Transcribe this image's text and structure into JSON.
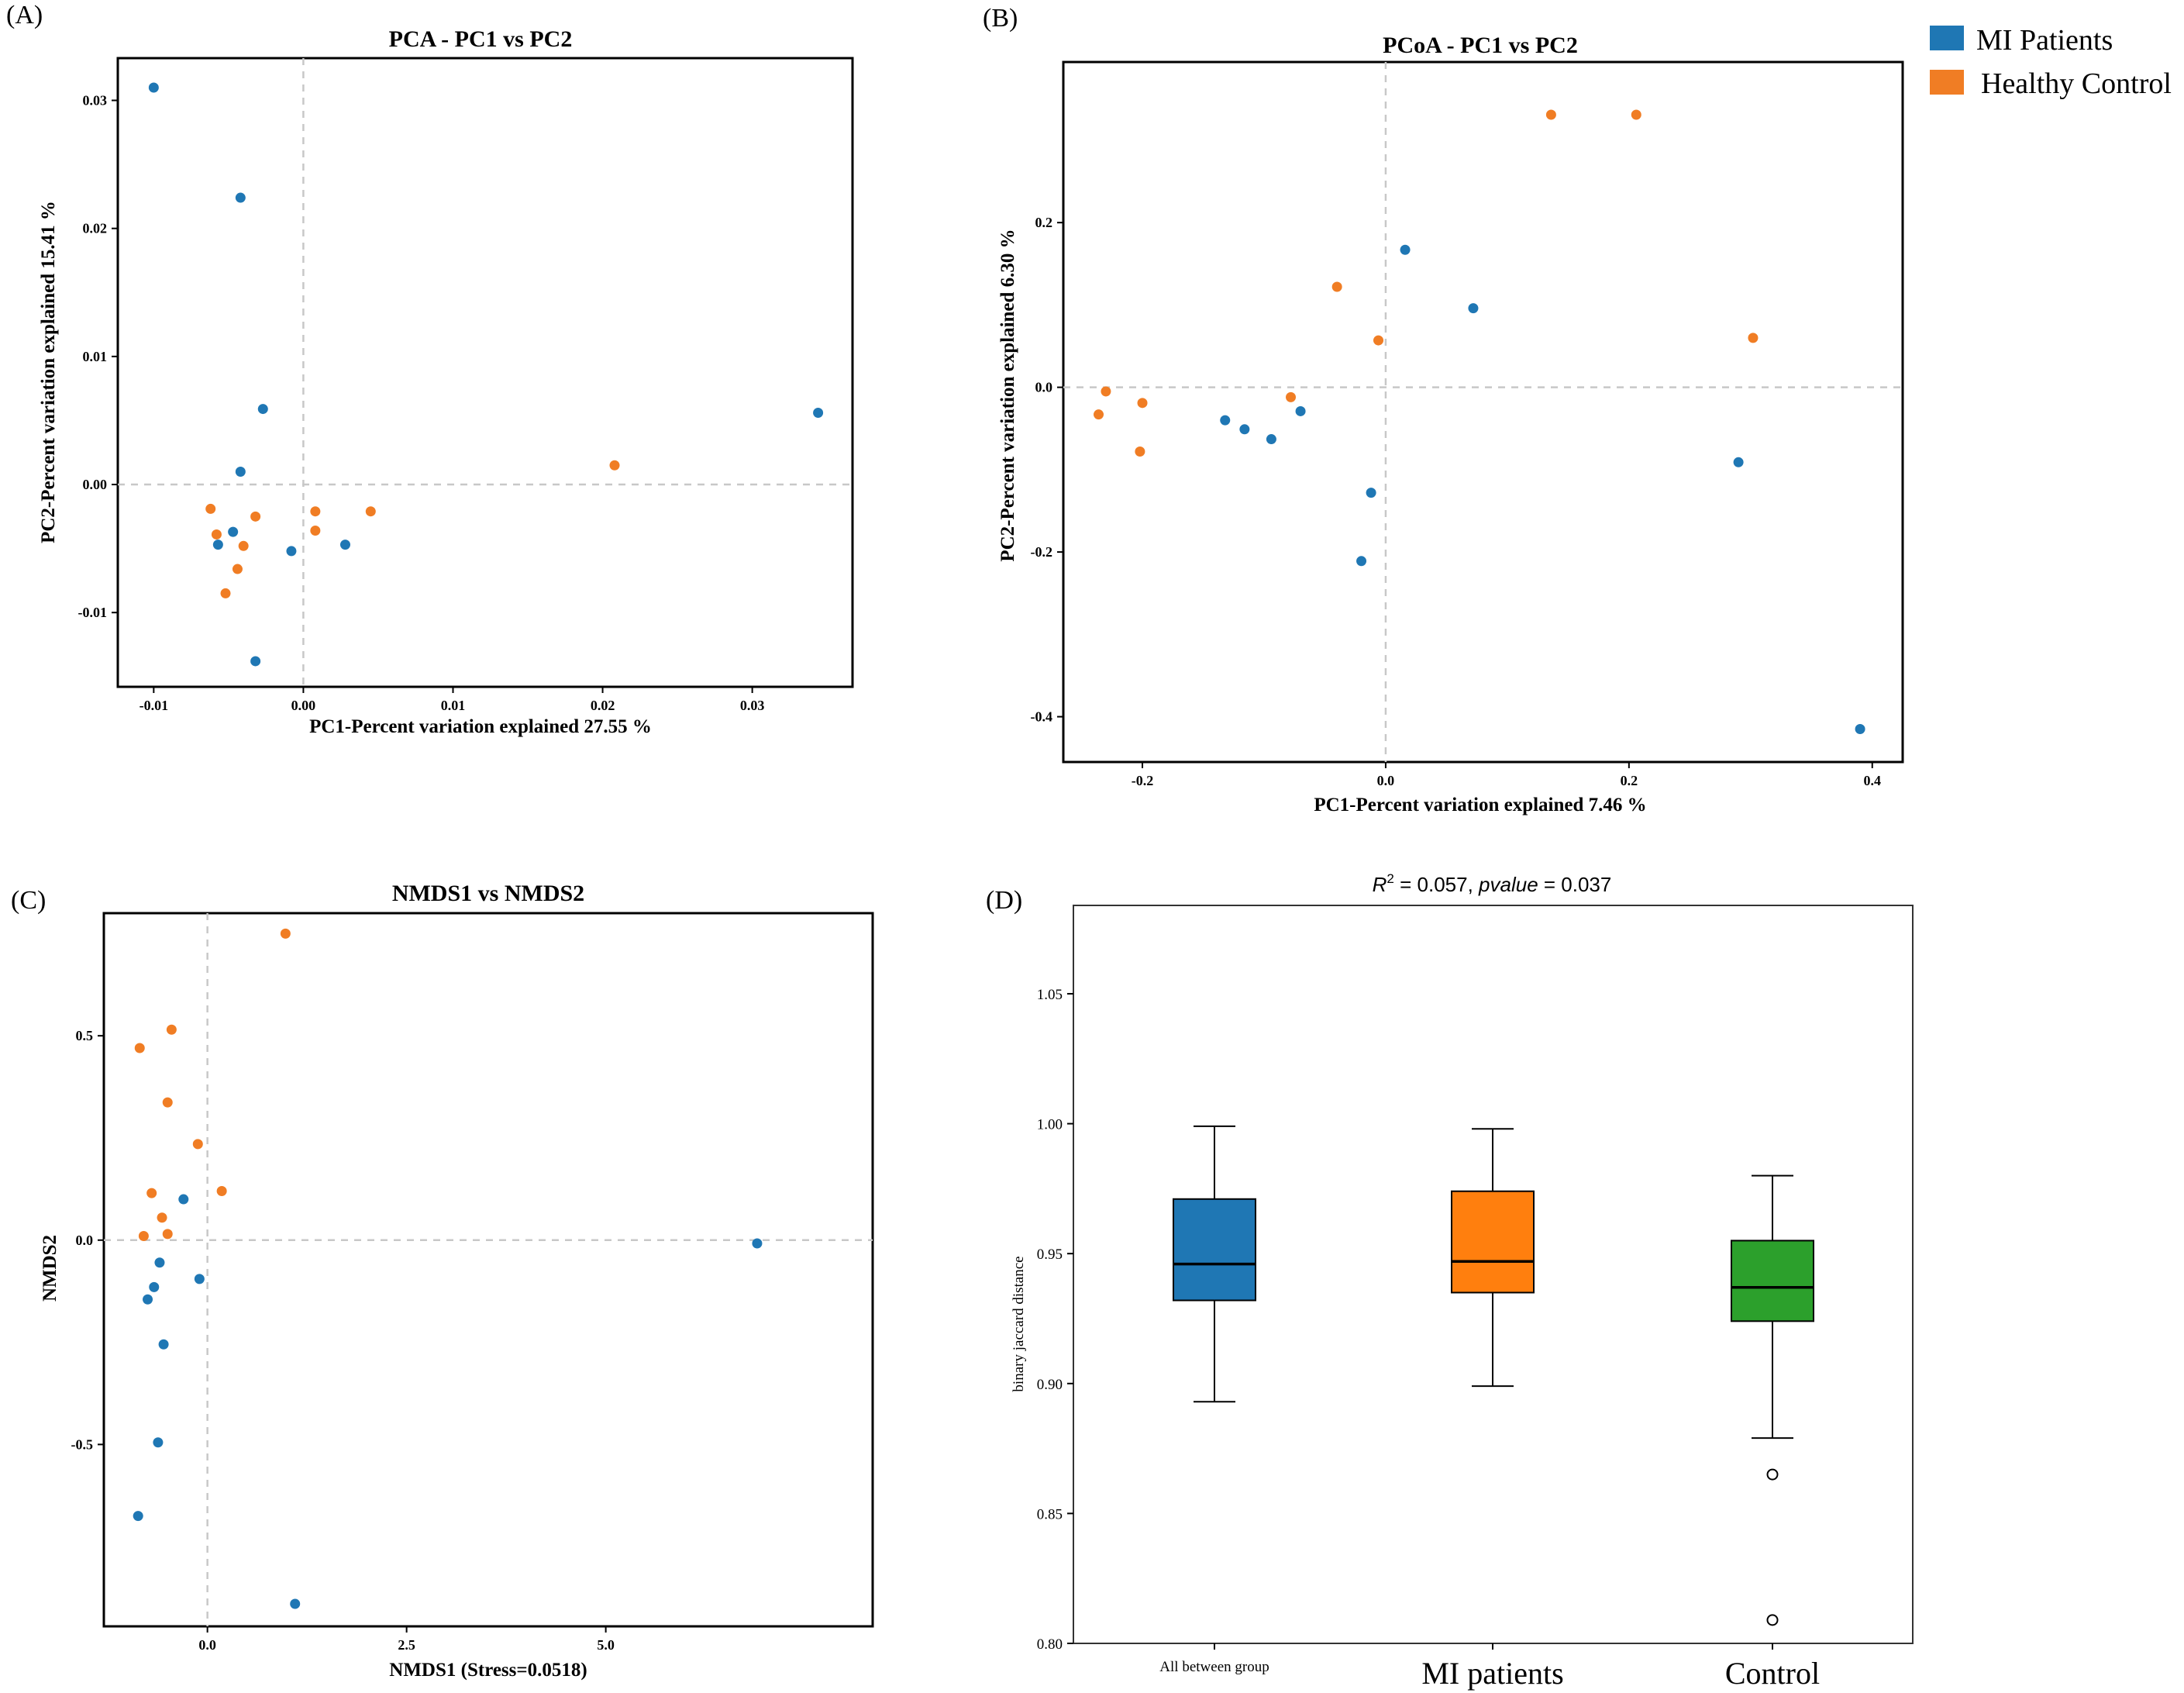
{
  "colors": {
    "mi": "#1f77b4",
    "hc": "#f07d24",
    "green": "#2ca02c",
    "orange_box": "#ff7f0e",
    "grid": "#c8c8c8"
  },
  "legend": {
    "items": [
      {
        "label": "MI Patients",
        "color": "#1f77b4"
      },
      {
        "label": "Healthy Control",
        "color": "#f07d24"
      }
    ]
  },
  "chart_data": [
    {
      "panel": "(A)",
      "type": "scatter",
      "title": "PCA - PC1 vs PC2",
      "xlabel": "PC1-Percent variation explained 27.55 %",
      "ylabel": "PC2-Percent variation explained 15.41 %",
      "xlim": [
        -0.0124,
        0.0367
      ],
      "ylim": [
        -0.0158,
        0.0333
      ],
      "xticks": [
        -0.01,
        0.0,
        0.01,
        0.02,
        0.03
      ],
      "xticklabels": [
        "-0.01",
        "0.00",
        "0.01",
        "0.02",
        "0.03"
      ],
      "yticks": [
        -0.01,
        0.0,
        0.01,
        0.02,
        0.03
      ],
      "yticklabels": [
        "-0.01",
        "0.00",
        "0.01",
        "0.02",
        "0.03"
      ],
      "series": [
        {
          "name": "MI Patients",
          "color": "#1f77b4",
          "points": [
            [
              -0.01,
              0.031
            ],
            [
              -0.0042,
              0.0224
            ],
            [
              -0.0027,
              0.0059
            ],
            [
              -0.0042,
              0.001
            ],
            [
              -0.0057,
              -0.0047
            ],
            [
              -0.0047,
              -0.0037
            ],
            [
              -0.0008,
              -0.0052
            ],
            [
              0.0028,
              -0.0047
            ],
            [
              -0.0032,
              -0.0138
            ],
            [
              0.0344,
              0.0056
            ]
          ]
        },
        {
          "name": "Healthy Control",
          "color": "#f07d24",
          "points": [
            [
              -0.0062,
              -0.0019
            ],
            [
              -0.0058,
              -0.0039
            ],
            [
              -0.0032,
              -0.0025
            ],
            [
              -0.004,
              -0.0048
            ],
            [
              -0.0044,
              -0.0066
            ],
            [
              -0.0052,
              -0.0085
            ],
            [
              0.0008,
              -0.0021
            ],
            [
              0.0008,
              -0.0036
            ],
            [
              0.0045,
              -0.0021
            ],
            [
              0.0208,
              0.0015
            ]
          ]
        }
      ]
    },
    {
      "panel": "(B)",
      "type": "scatter",
      "title": "PCoA - PC1 vs PC2",
      "xlabel": "PC1-Percent variation explained 7.46 %",
      "ylabel": "PC2-Percent variation explained 6.30 %",
      "xlim": [
        -0.265,
        0.425
      ],
      "ylim": [
        -0.455,
        0.395
      ],
      "xticks": [
        -0.2,
        0.0,
        0.2,
        0.4
      ],
      "xticklabels": [
        "-0.2",
        "0.0",
        "0.2",
        "0.4"
      ],
      "yticks": [
        -0.4,
        -0.2,
        0.0,
        0.2
      ],
      "yticklabels": [
        "-0.4",
        "-0.2",
        "0.0",
        "0.2"
      ],
      "series": [
        {
          "name": "MI Patients",
          "color": "#1f77b4",
          "points": [
            [
              0.016,
              0.167
            ],
            [
              0.072,
              0.096
            ],
            [
              -0.132,
              -0.04
            ],
            [
              -0.116,
              -0.051
            ],
            [
              -0.094,
              -0.063
            ],
            [
              -0.07,
              -0.029
            ],
            [
              -0.012,
              -0.128
            ],
            [
              -0.02,
              -0.211
            ],
            [
              0.29,
              -0.091
            ],
            [
              0.39,
              -0.415
            ]
          ]
        },
        {
          "name": "Healthy Control",
          "color": "#f07d24",
          "points": [
            [
              0.136,
              0.331
            ],
            [
              0.206,
              0.331
            ],
            [
              -0.04,
              0.122
            ],
            [
              -0.006,
              0.057
            ],
            [
              0.302,
              0.06
            ],
            [
              -0.23,
              -0.005
            ],
            [
              -0.2,
              -0.019
            ],
            [
              -0.236,
              -0.033
            ],
            [
              -0.202,
              -0.078
            ],
            [
              -0.078,
              -0.012
            ]
          ]
        }
      ]
    },
    {
      "panel": "(C)",
      "type": "scatter",
      "title": "NMDS1 vs NMDS2",
      "xlabel": "NMDS1 (Stress=0.0518)",
      "ylabel": "NMDS2",
      "xlim": [
        -1.3,
        8.35
      ],
      "ylim": [
        -0.945,
        0.8
      ],
      "xticks": [
        0.0,
        2.5,
        5.0
      ],
      "xticklabels": [
        "0.0",
        "2.5",
        "5.0"
      ],
      "yticks": [
        -0.5,
        0.0,
        0.5
      ],
      "yticklabels": [
        "-0.5",
        "0.0",
        "0.5"
      ],
      "series": [
        {
          "name": "MI Patients",
          "color": "#1f77b4",
          "points": [
            [
              -0.3,
              0.1
            ],
            [
              -0.1,
              -0.095
            ],
            [
              -0.6,
              -0.055
            ],
            [
              -0.67,
              -0.115
            ],
            [
              -0.75,
              -0.145
            ],
            [
              -0.55,
              -0.255
            ],
            [
              -0.62,
              -0.495
            ],
            [
              -0.87,
              -0.675
            ],
            [
              1.1,
              -0.89
            ],
            [
              6.9,
              -0.008
            ]
          ]
        },
        {
          "name": "Healthy Control",
          "color": "#f07d24",
          "points": [
            [
              0.98,
              0.75
            ],
            [
              -0.45,
              0.515
            ],
            [
              -0.85,
              0.47
            ],
            [
              -0.5,
              0.337
            ],
            [
              -0.12,
              0.235
            ],
            [
              0.18,
              0.12
            ],
            [
              -0.7,
              0.115
            ],
            [
              -0.57,
              0.055
            ],
            [
              -0.5,
              0.015
            ],
            [
              -0.8,
              0.01
            ]
          ]
        }
      ]
    },
    {
      "panel": "(D)",
      "type": "box",
      "title_r2_label": "R",
      "title_r2_exp": "2",
      "title_r2_value": " = 0.057, ",
      "title_p_label": "pvalue",
      "title_p_value": " = 0.037",
      "ylabel": "binary jaccard distance",
      "ylim": [
        0.8,
        1.084
      ],
      "yticks": [
        0.8,
        0.85,
        0.9,
        0.95,
        1.0,
        1.05
      ],
      "yticklabels": [
        "0.80",
        "0.85",
        "0.90",
        "0.95",
        "1.00",
        "1.05"
      ],
      "categories": [
        "All between group",
        "MI patients",
        "Control"
      ],
      "boxes": [
        {
          "name": "All between group",
          "color": "#1f77b4",
          "whisker_low": 0.893,
          "q1": 0.932,
          "median": 0.946,
          "q3": 0.971,
          "whisker_high": 0.999,
          "outliers": []
        },
        {
          "name": "MI patients",
          "color": "#ff7f0e",
          "whisker_low": 0.899,
          "q1": 0.935,
          "median": 0.947,
          "q3": 0.974,
          "whisker_high": 0.998,
          "outliers": []
        },
        {
          "name": "Control",
          "color": "#2ca02c",
          "whisker_low": 0.879,
          "q1": 0.924,
          "median": 0.937,
          "q3": 0.955,
          "whisker_high": 0.98,
          "outliers": [
            0.865,
            0.809
          ]
        }
      ]
    }
  ]
}
